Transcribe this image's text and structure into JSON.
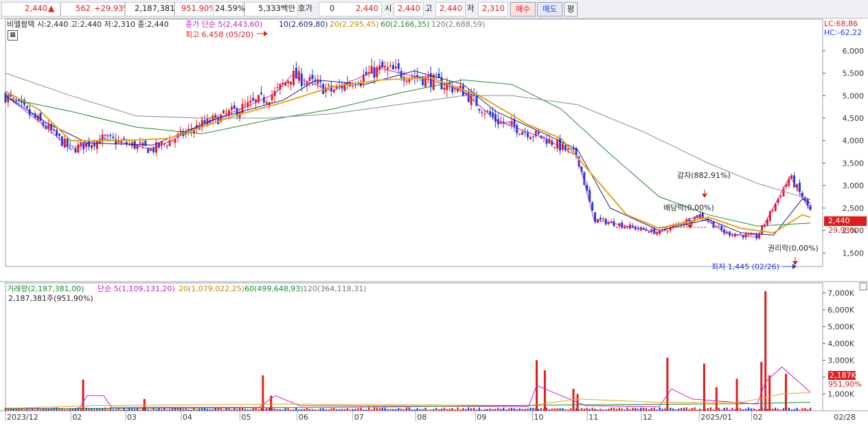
{
  "quote_bar": {
    "price": "2,440",
    "change": "562",
    "change_pct": "+29.93%",
    "volume": "2,187,381",
    "volume_ratio": "951.90%",
    "turnover": "24.59%",
    "trade_value": "5,333백만",
    "hoga_label": "호가",
    "hoga_value": "0",
    "hoga_price": "2,440",
    "open_label": "시",
    "open": "2,440",
    "high_label": "고",
    "high": "2,440",
    "low_label": "저",
    "low": "2,310",
    "buy_btn": "매수",
    "sell_btn": "매도",
    "eval_btn": "평"
  },
  "price_panel": {
    "stock_info": "비엘팜텍 시:2,440 고:2,440 저:2,310 종:2,440",
    "legend_close": "종가 단순 5(2,443,60)",
    "legend_ma10": "10(2,609,80)",
    "legend_ma20": "20(2,295,45)",
    "legend_ma60": "60(2,166,35)",
    "legend_ma120": "120(2,688,59)",
    "lc": "LC:68,86",
    "hc": "HC:-62,22",
    "max_label": "최고 6,458 (05/20)",
    "min_label": "최저 1,445 (02/26)",
    "event_gamja": "감자(882,91%)",
    "event_dividend": "배당락(0,00%)",
    "event_rights": "권리락(0,00%)",
    "current_price_tag": "2,440",
    "current_change_tag": "29,93%"
  },
  "volume_panel": {
    "legend_volume": "거래량(2,187,381,00)",
    "legend_ma5": "단순 5(1,109,131,20)",
    "legend_ma20": "20(1,079,022,25)",
    "legend_ma60": "60(499,648,93)",
    "legend_ma120": "120(364,118,31)",
    "sub_label": "2,187,381주(951,90%)",
    "current_volume_tag": "2,187K",
    "current_ratio_tag": "951,90%"
  },
  "colors": {
    "up": "#e11c1c",
    "down": "#1c3ce1",
    "ma5": "#c71fc7",
    "ma10": "#1a1a8a",
    "ma20": "#e8a317",
    "ma60": "#1b8a2c",
    "ma120": "#8a8a8a"
  },
  "chart_data": [
    {
      "type": "candlestick",
      "title": "비엘팜텍",
      "x_labels": [
        "2023/12",
        "02",
        "03",
        "04",
        "05",
        "06",
        "07",
        "08",
        "09",
        "10",
        "11",
        "12",
        "2025/01",
        "02",
        "02/28"
      ],
      "ylim": [
        1200,
        6700
      ],
      "y_ticks": [
        1500,
        2000,
        2500,
        3000,
        3500,
        4000,
        4500,
        5000,
        5500,
        6000
      ],
      "series": [
        {
          "name": "5",
          "type": "line",
          "points": [
            [
              0,
              5000
            ],
            [
              0.05,
              4300
            ],
            [
              0.08,
              3800
            ],
            [
              0.12,
              4050
            ],
            [
              0.18,
              3800
            ],
            [
              0.24,
              4350
            ],
            [
              0.3,
              4800
            ],
            [
              0.33,
              5050
            ],
            [
              0.35,
              5450
            ],
            [
              0.4,
              5100
            ],
            [
              0.42,
              5300
            ],
            [
              0.46,
              5600
            ],
            [
              0.52,
              5350
            ],
            [
              0.56,
              5100
            ],
            [
              0.6,
              4450
            ],
            [
              0.66,
              4050
            ],
            [
              0.7,
              3650
            ],
            [
              0.72,
              2250
            ],
            [
              0.8,
              1950
            ],
            [
              0.85,
              2350
            ],
            [
              0.88,
              1950
            ],
            [
              0.92,
              1850
            ],
            [
              0.96,
              3200
            ],
            [
              0.985,
              2440
            ]
          ]
        },
        {
          "name": "10",
          "type": "line",
          "points": [
            [
              0,
              5000
            ],
            [
              0.05,
              4400
            ],
            [
              0.1,
              3950
            ],
            [
              0.18,
              3900
            ],
            [
              0.26,
              4500
            ],
            [
              0.34,
              4900
            ],
            [
              0.38,
              5350
            ],
            [
              0.44,
              5250
            ],
            [
              0.5,
              5550
            ],
            [
              0.56,
              5250
            ],
            [
              0.6,
              4650
            ],
            [
              0.66,
              4150
            ],
            [
              0.7,
              3800
            ],
            [
              0.74,
              2500
            ],
            [
              0.8,
              2000
            ],
            [
              0.86,
              2250
            ],
            [
              0.9,
              1950
            ],
            [
              0.94,
              1900
            ],
            [
              0.975,
              2700
            ],
            [
              0.985,
              2610
            ]
          ]
        },
        {
          "name": "20",
          "type": "line",
          "points": [
            [
              0,
              5100
            ],
            [
              0.04,
              4700
            ],
            [
              0.08,
              4000
            ],
            [
              0.14,
              4000
            ],
            [
              0.2,
              4050
            ],
            [
              0.28,
              4550
            ],
            [
              0.34,
              4850
            ],
            [
              0.4,
              5200
            ],
            [
              0.46,
              5350
            ],
            [
              0.52,
              5400
            ],
            [
              0.58,
              5000
            ],
            [
              0.64,
              4350
            ],
            [
              0.68,
              4050
            ],
            [
              0.72,
              3200
            ],
            [
              0.76,
              2350
            ],
            [
              0.8,
              2050
            ],
            [
              0.86,
              2300
            ],
            [
              0.9,
              2050
            ],
            [
              0.94,
              1950
            ],
            [
              0.975,
              2350
            ],
            [
              0.985,
              2295
            ]
          ]
        },
        {
          "name": "60",
          "type": "line",
          "points": [
            [
              0,
              4950
            ],
            [
              0.08,
              4650
            ],
            [
              0.16,
              4300
            ],
            [
              0.24,
              4150
            ],
            [
              0.32,
              4450
            ],
            [
              0.4,
              4700
            ],
            [
              0.48,
              5050
            ],
            [
              0.56,
              5350
            ],
            [
              0.62,
              5250
            ],
            [
              0.68,
              4700
            ],
            [
              0.74,
              3700
            ],
            [
              0.8,
              2750
            ],
            [
              0.86,
              2350
            ],
            [
              0.92,
              2100
            ],
            [
              0.985,
              2166
            ]
          ]
        },
        {
          "name": "120",
          "type": "line",
          "points": [
            [
              0,
              5500
            ],
            [
              0.08,
              5000
            ],
            [
              0.16,
              4550
            ],
            [
              0.24,
              4500
            ],
            [
              0.32,
              4500
            ],
            [
              0.4,
              4600
            ],
            [
              0.48,
              4800
            ],
            [
              0.56,
              5000
            ],
            [
              0.62,
              5000
            ],
            [
              0.7,
              4800
            ],
            [
              0.78,
              4200
            ],
            [
              0.86,
              3500
            ],
            [
              0.92,
              3050
            ],
            [
              0.985,
              2689
            ]
          ]
        }
      ]
    },
    {
      "type": "bar",
      "title": "거래량",
      "ylim": [
        0,
        7500
      ],
      "y_ticks": [
        1000,
        2000,
        3000,
        4000,
        5000,
        6000,
        7000
      ],
      "y_unit": "K",
      "spikes": [
        [
          0.095,
          1850
        ],
        [
          0.17,
          700
        ],
        [
          0.315,
          2100
        ],
        [
          0.325,
          900
        ],
        [
          0.65,
          3000
        ],
        [
          0.66,
          2400
        ],
        [
          0.695,
          1300
        ],
        [
          0.7,
          1000
        ],
        [
          0.81,
          3150
        ],
        [
          0.855,
          2800
        ],
        [
          0.87,
          1400
        ],
        [
          0.895,
          1900
        ],
        [
          0.925,
          2900
        ],
        [
          0.93,
          7100
        ],
        [
          0.935,
          2100
        ],
        [
          0.955,
          2187
        ]
      ]
    }
  ]
}
